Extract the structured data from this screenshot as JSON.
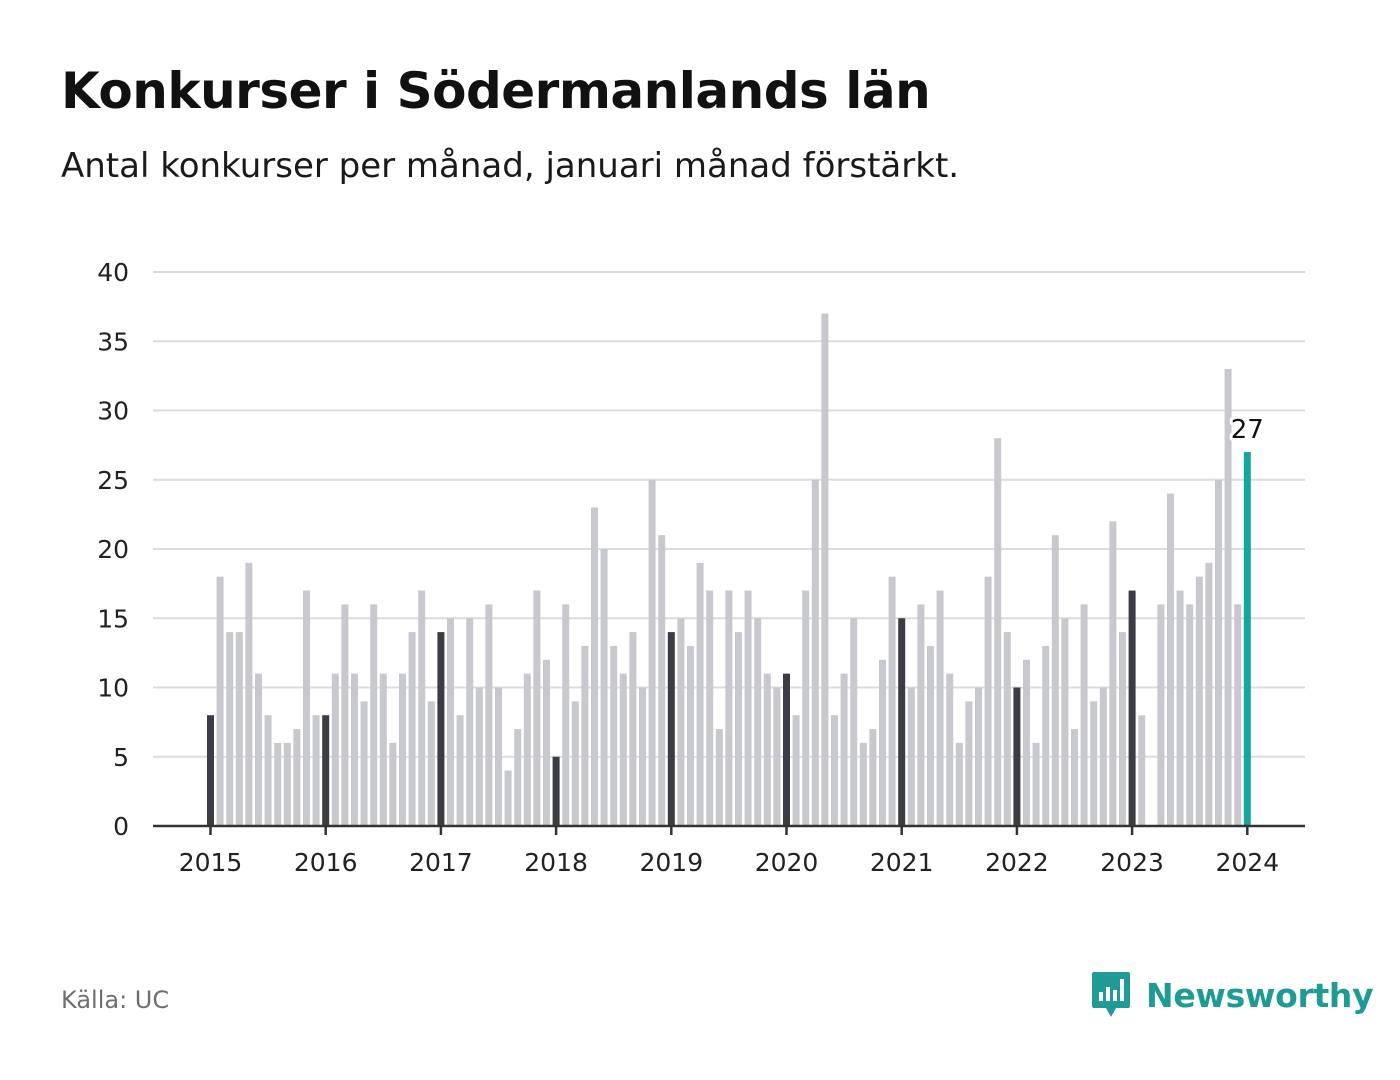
{
  "header": {
    "title": "Konkurser i Södermanlands län",
    "subtitle": "Antal konkurser per månad, januari månad förstärkt."
  },
  "footer": {
    "source": "Källa: UC",
    "brand_name": "Newsworthy",
    "brand_icon": "bar-chart-speech-bubble-icon"
  },
  "colors": {
    "regular_bar": "#c8c8cf",
    "january_bar": "#3c3c46",
    "latest_bar": "#17a69c",
    "grid": "#dcdce0",
    "axis": "#333333",
    "brand": "#1e9b94"
  },
  "chart_data": {
    "type": "bar",
    "title": "Konkurser i Södermanlands län",
    "subtitle": "Antal konkurser per månad, januari månad förstärkt.",
    "xlabel": "",
    "ylabel": "",
    "ylim": [
      0,
      40
    ],
    "yticks": [
      0,
      5,
      10,
      15,
      20,
      25,
      30,
      35,
      40
    ],
    "xtick_labels": [
      "2015",
      "2016",
      "2017",
      "2018",
      "2019",
      "2020",
      "2021",
      "2022",
      "2023",
      "2024"
    ],
    "grid": true,
    "start": "2015-01",
    "end": "2024-01",
    "highlight": "January bars in dark color; latest month in teal with value label",
    "latest_label": "27",
    "values": [
      8,
      18,
      14,
      14,
      19,
      11,
      8,
      6,
      6,
      7,
      17,
      8,
      8,
      11,
      16,
      11,
      9,
      16,
      11,
      6,
      11,
      14,
      17,
      9,
      14,
      15,
      8,
      15,
      10,
      16,
      10,
      4,
      7,
      11,
      17,
      12,
      5,
      16,
      9,
      13,
      23,
      20,
      13,
      11,
      14,
      10,
      25,
      21,
      14,
      15,
      13,
      19,
      17,
      7,
      17,
      14,
      17,
      15,
      11,
      10,
      11,
      8,
      17,
      25,
      37,
      8,
      11,
      15,
      6,
      7,
      12,
      18,
      15,
      10,
      16,
      13,
      17,
      11,
      6,
      9,
      10,
      18,
      28,
      14,
      10,
      12,
      6,
      13,
      21,
      15,
      7,
      16,
      9,
      10,
      22,
      14,
      17,
      8,
      0,
      16,
      24,
      17,
      16,
      18,
      19,
      25,
      33,
      16,
      27
    ]
  }
}
